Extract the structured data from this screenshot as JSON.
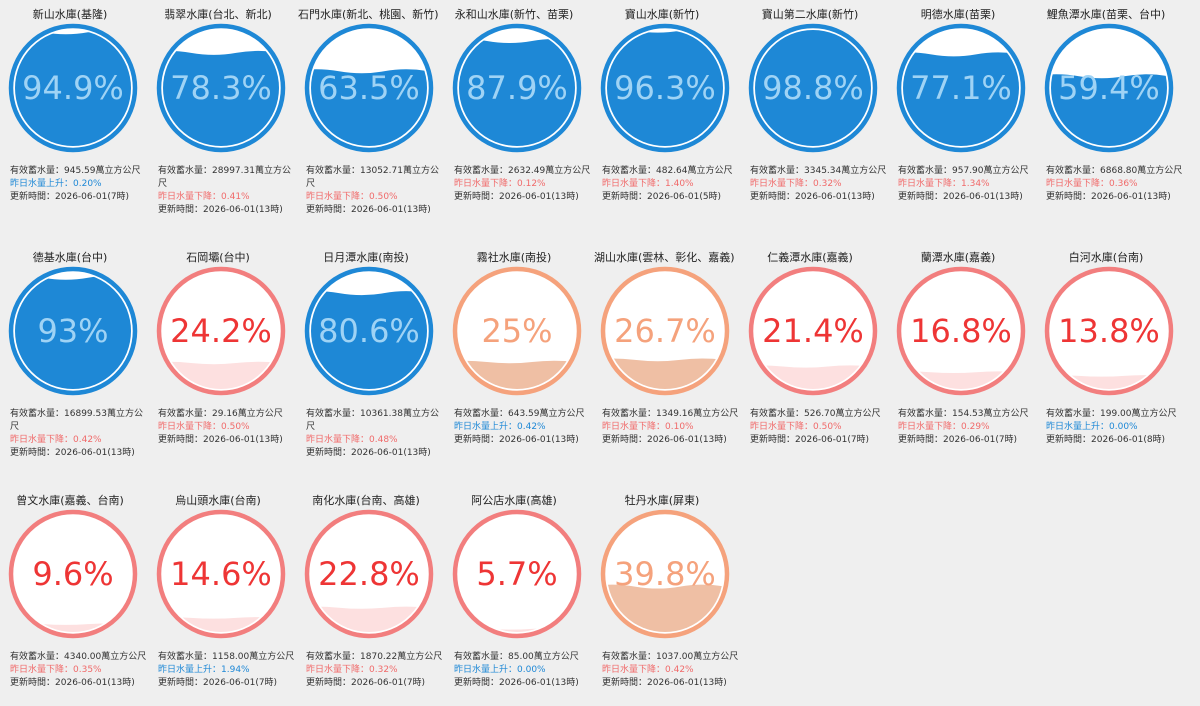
{
  "labels": {
    "capacity_prefix": "有效蓄水量：",
    "capacity_unit": "萬立方公尺",
    "updated_prefix": "更新時間：",
    "trend_up": "昨日水量上升：",
    "trend_down": "昨日水量下降："
  },
  "colors": {
    "blue": "#1e88d6",
    "blue_border": "#1e88d6",
    "blue_text": "#9fd3f5",
    "orange_border": "#f5a27c",
    "orange_fill": "#efbfa4",
    "orange_text": "#f5a27c",
    "red_border": "#f27e7e",
    "red_fill": "#fde0e0",
    "red_text": "#ee3535"
  },
  "reservoirs": [
    {
      "name": "新山水庫(基隆)",
      "percent": "94.9%",
      "level": 0.949,
      "status": "blue",
      "capacity": "945.59",
      "trend": "up",
      "change": "0.20%",
      "updated": "2026-06-01(7時)"
    },
    {
      "name": "翡翠水庫(台北、新北)",
      "percent": "78.3%",
      "level": 0.783,
      "status": "blue",
      "capacity": "28997.31",
      "trend": "down",
      "change": "0.41%",
      "updated": "2026-06-01(13時)"
    },
    {
      "name": "石門水庫(新北、桃園、新竹)",
      "percent": "63.5%",
      "level": 0.635,
      "status": "blue",
      "capacity": "13052.71",
      "trend": "down",
      "change": "0.50%",
      "updated": "2026-06-01(13時)"
    },
    {
      "name": "永和山水庫(新竹、苗栗)",
      "percent": "87.9%",
      "level": 0.879,
      "status": "blue",
      "capacity": "2632.49",
      "trend": "down",
      "change": "0.12%",
      "updated": "2026-06-01(13時)"
    },
    {
      "name": "寶山水庫(新竹)",
      "percent": "96.3%",
      "level": 0.963,
      "status": "blue",
      "capacity": "482.64",
      "trend": "down",
      "change": "1.40%",
      "updated": "2026-06-01(5時)"
    },
    {
      "name": "寶山第二水庫(新竹)",
      "percent": "98.8%",
      "level": 0.988,
      "status": "blue",
      "capacity": "3345.34",
      "trend": "down",
      "change": "0.32%",
      "updated": "2026-06-01(13時)"
    },
    {
      "name": "明德水庫(苗栗)",
      "percent": "77.1%",
      "level": 0.771,
      "status": "blue",
      "capacity": "957.90",
      "trend": "down",
      "change": "1.34%",
      "updated": "2026-06-01(13時)"
    },
    {
      "name": "鯉魚潭水庫(苗栗、台中)",
      "percent": "59.4%",
      "level": 0.594,
      "status": "blue",
      "capacity": "6868.80",
      "trend": "down",
      "change": "0.36%",
      "updated": "2026-06-01(13時)"
    },
    {
      "name": "德基水庫(台中)",
      "percent": "93%",
      "level": 0.93,
      "status": "blue",
      "capacity": "16899.53",
      "trend": "down",
      "change": "0.42%",
      "updated": "2026-06-01(13時)"
    },
    {
      "name": "石岡壩(台中)",
      "percent": "24.2%",
      "level": 0.242,
      "status": "red",
      "capacity": "29.16",
      "trend": "down",
      "change": "0.50%",
      "updated": "2026-06-01(13時)"
    },
    {
      "name": "日月潭水庫(南投)",
      "percent": "80.6%",
      "level": 0.806,
      "status": "blue",
      "capacity": "10361.38",
      "trend": "down",
      "change": "0.48%",
      "updated": "2026-06-01(13時)"
    },
    {
      "name": "霧社水庫(南投)",
      "percent": "25%",
      "level": 0.25,
      "status": "orange",
      "capacity": "643.59",
      "trend": "up",
      "change": "0.42%",
      "updated": "2026-06-01(13時)"
    },
    {
      "name": "湖山水庫(雲林、彰化、嘉義)",
      "percent": "26.7%",
      "level": 0.267,
      "status": "orange",
      "capacity": "1349.16",
      "trend": "down",
      "change": "0.10%",
      "updated": "2026-06-01(13時)"
    },
    {
      "name": "仁義潭水庫(嘉義)",
      "percent": "21.4%",
      "level": 0.214,
      "status": "red",
      "capacity": "526.70",
      "trend": "down",
      "change": "0.50%",
      "updated": "2026-06-01(7時)"
    },
    {
      "name": "蘭潭水庫(嘉義)",
      "percent": "16.8%",
      "level": 0.168,
      "status": "red",
      "capacity": "154.53",
      "trend": "down",
      "change": "0.29%",
      "updated": "2026-06-01(7時)"
    },
    {
      "name": "白河水庫(台南)",
      "percent": "13.8%",
      "level": 0.138,
      "status": "red",
      "capacity": "199.00",
      "trend": "up",
      "change": "0.00%",
      "updated": "2026-06-01(8時)"
    },
    {
      "name": "曾文水庫(嘉義、台南)",
      "percent": "9.6%",
      "level": 0.096,
      "status": "red",
      "capacity": "4340.00",
      "trend": "down",
      "change": "0.35%",
      "updated": "2026-06-01(13時)"
    },
    {
      "name": "烏山頭水庫(台南)",
      "percent": "14.6%",
      "level": 0.146,
      "status": "red",
      "capacity": "1158.00",
      "trend": "up",
      "change": "1.94%",
      "updated": "2026-06-01(7時)"
    },
    {
      "name": "南化水庫(台南、高雄)",
      "percent": "22.8%",
      "level": 0.228,
      "status": "red",
      "capacity": "1870.22",
      "trend": "down",
      "change": "0.32%",
      "updated": "2026-06-01(7時)"
    },
    {
      "name": "阿公店水庫(高雄)",
      "percent": "5.7%",
      "level": 0.057,
      "status": "red",
      "capacity": "85.00",
      "trend": "up",
      "change": "0.00%",
      "updated": "2026-06-01(13時)"
    },
    {
      "name": "牡丹水庫(屏東)",
      "percent": "39.8%",
      "level": 0.398,
      "status": "orange",
      "capacity": "1037.00",
      "trend": "down",
      "change": "0.42%",
      "updated": "2026-06-01(13時)"
    }
  ]
}
